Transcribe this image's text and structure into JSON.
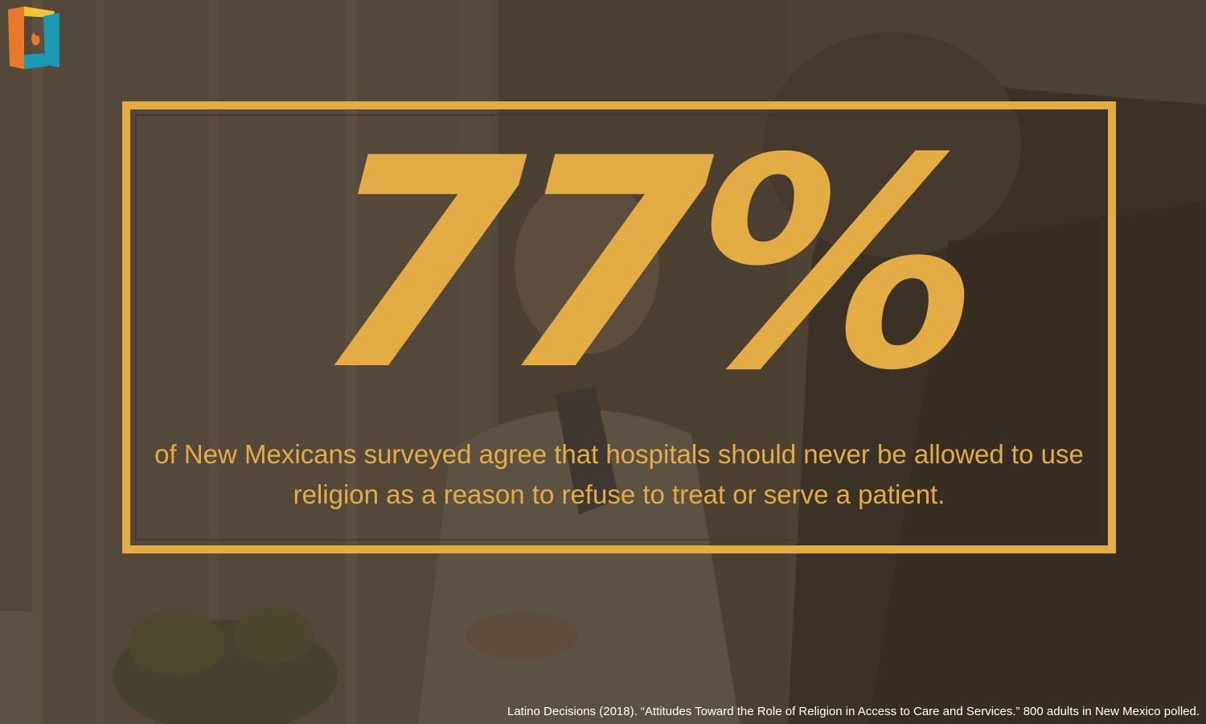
{
  "colors": {
    "accent": "#e4ac44",
    "background_overlay": "#4f4537",
    "citation_text": "#ffffff",
    "logo_orange": "#e8782a",
    "logo_teal": "#1a9ab0",
    "logo_yellow": "#f1c232"
  },
  "headline": {
    "stat": "77%"
  },
  "caption": {
    "text": "of New Mexicans surveyed agree that hospitals should never be allowed to use religion as a reason to refuse to treat or serve a patient."
  },
  "citation": {
    "text": "Latino Decisions (2018).  “Attitudes Toward the Role of Religion in Access to Care and Services.” 800 adults in New Mexico polled."
  },
  "icons": {
    "logo": "flame-door-logo-icon"
  }
}
